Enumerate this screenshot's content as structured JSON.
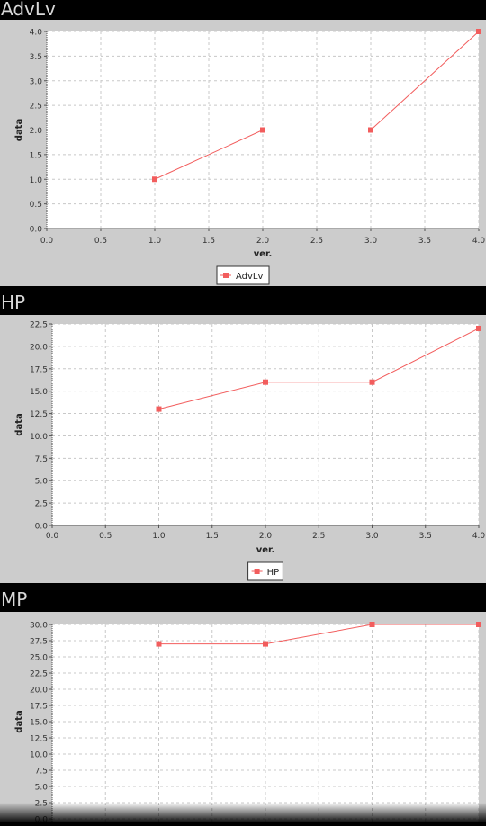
{
  "colors": {
    "series": "#f25d5d",
    "plot_bg": "#ffffff",
    "panel_bg": "#cccccc",
    "header_bg": "#000000",
    "grid": "#c8c8c8"
  },
  "chart_data": [
    {
      "type": "line",
      "title": "AdvLv",
      "xlabel": "ver.",
      "ylabel": "data",
      "xlim": [
        0,
        4
      ],
      "ylim": [
        0,
        4
      ],
      "xticks": [
        "0.0",
        "0.5",
        "1.0",
        "1.5",
        "2.0",
        "2.5",
        "3.0",
        "3.5",
        "4.0"
      ],
      "yticks": [
        "0.0",
        "0.5",
        "1.0",
        "1.5",
        "2.0",
        "2.5",
        "3.0",
        "3.5",
        "4.0"
      ],
      "grid": true,
      "legend": "bottom-center",
      "series": [
        {
          "name": "AdvLv",
          "x": [
            1,
            2,
            3,
            4
          ],
          "y": [
            1,
            2,
            2,
            4
          ]
        }
      ]
    },
    {
      "type": "line",
      "title": "HP",
      "xlabel": "ver.",
      "ylabel": "data",
      "xlim": [
        0,
        4
      ],
      "ylim": [
        0,
        22.5
      ],
      "xticks": [
        "0.0",
        "0.5",
        "1.0",
        "1.5",
        "2.0",
        "2.5",
        "3.0",
        "3.5",
        "4.0"
      ],
      "yticks": [
        "0.0",
        "2.5",
        "5.0",
        "7.5",
        "10.0",
        "12.5",
        "15.0",
        "17.5",
        "20.0",
        "22.5"
      ],
      "grid": true,
      "legend": "bottom-center",
      "series": [
        {
          "name": "HP",
          "x": [
            1,
            2,
            3,
            4
          ],
          "y": [
            13,
            16,
            16,
            22
          ]
        }
      ]
    },
    {
      "type": "line",
      "title": "MP",
      "xlabel": "",
      "ylabel": "data",
      "xlim": [
        0,
        4
      ],
      "ylim": [
        0,
        30
      ],
      "xticks": [],
      "yticks": [
        "0.0",
        "2.5",
        "5.0",
        "7.5",
        "10.0",
        "12.5",
        "15.0",
        "17.5",
        "20.0",
        "22.5",
        "25.0",
        "27.5",
        "30.0"
      ],
      "grid": true,
      "legend": "none",
      "series": [
        {
          "name": "MP",
          "x": [
            1,
            2,
            3,
            4
          ],
          "y": [
            27,
            27,
            30,
            30
          ]
        }
      ]
    }
  ]
}
